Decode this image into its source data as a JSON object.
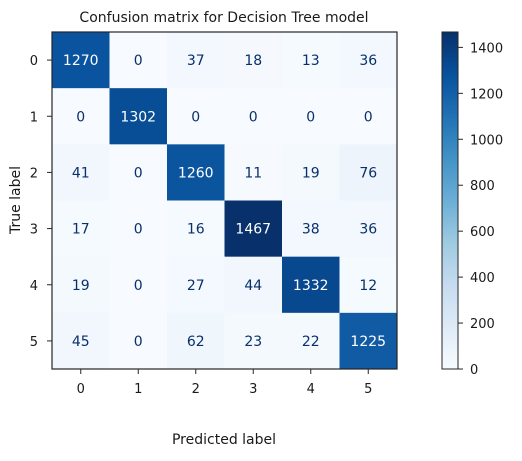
{
  "chart_data": {
    "type": "heatmap",
    "title": "Confusion matrix for Decision Tree model",
    "xlabel": "Predicted label",
    "ylabel": "True label",
    "x_categories": [
      "0",
      "1",
      "2",
      "3",
      "4",
      "5"
    ],
    "y_categories": [
      "0",
      "1",
      "2",
      "3",
      "4",
      "5"
    ],
    "values": [
      [
        1270,
        0,
        37,
        18,
        13,
        36
      ],
      [
        0,
        1302,
        0,
        0,
        0,
        0
      ],
      [
        41,
        0,
        1260,
        11,
        19,
        76
      ],
      [
        17,
        0,
        16,
        1467,
        38,
        36
      ],
      [
        19,
        0,
        27,
        44,
        1332,
        12
      ],
      [
        45,
        0,
        62,
        23,
        22,
        1225
      ]
    ],
    "colormap": "Blues",
    "colorbar": {
      "min": 0,
      "max": 1467,
      "ticks": [
        "0",
        "200",
        "400",
        "600",
        "800",
        "1000",
        "1200",
        "1400"
      ]
    },
    "grid": false
  }
}
